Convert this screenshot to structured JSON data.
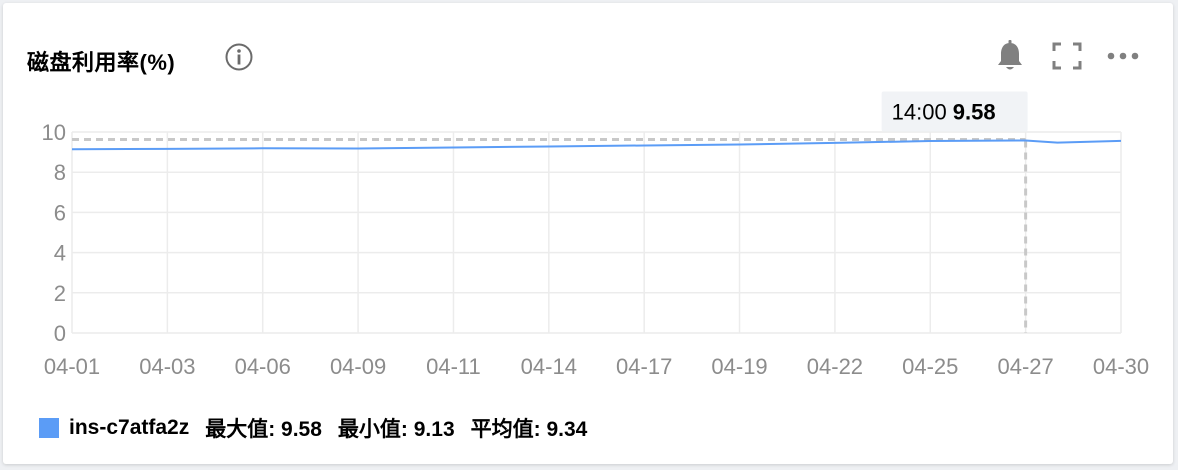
{
  "panel": {
    "title": "磁盘利用率(%)"
  },
  "tooltip": {
    "time": "14:00",
    "value": "9.58"
  },
  "legend": {
    "series_name": "ins-c7atfa2z",
    "max_label": "最大值: 9.58",
    "min_label": "最小值: 9.13",
    "avg_label": "平均值: 9.34"
  },
  "colors": {
    "series": "#5b9cf6",
    "grid": "#ececec",
    "axis_text": "#8c8c8c",
    "reference_line": "#c8c8c8"
  },
  "chart_data": {
    "type": "line",
    "x_tick_labels": [
      "04-01",
      "04-03",
      "04-06",
      "04-09",
      "04-11",
      "04-14",
      "04-17",
      "04-19",
      "04-22",
      "04-25",
      "04-27",
      "04-30"
    ],
    "y_ticks": [
      0,
      2,
      4,
      6,
      8,
      10
    ],
    "ylim": [
      0,
      10
    ],
    "grid": true,
    "series": [
      {
        "name": "ins-c7atfa2z",
        "points": [
          [
            "04-01",
            9.14
          ],
          [
            "04-03",
            9.16
          ],
          [
            "04-06",
            9.19
          ],
          [
            "04-09",
            9.18
          ],
          [
            "04-11",
            9.23
          ],
          [
            "04-14",
            9.28
          ],
          [
            "04-17",
            9.33
          ],
          [
            "04-19",
            9.38
          ],
          [
            "04-22",
            9.46
          ],
          [
            "04-25",
            9.55
          ],
          [
            "04-27",
            9.58
          ],
          [
            "04-28",
            9.47
          ],
          [
            "04-30",
            9.56
          ]
        ]
      }
    ],
    "highlight": {
      "x": "04-27",
      "y": 9.58
    }
  }
}
